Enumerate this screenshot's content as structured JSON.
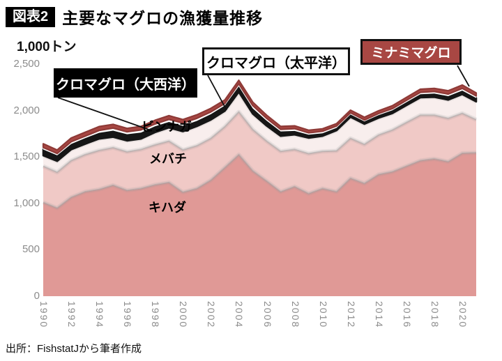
{
  "header": {
    "tag": "図表2",
    "title": "主要なマグロの漁獲量推移"
  },
  "axis_unit": "1,000トン",
  "source": "出所：FishstatJから筆者作成",
  "callouts": {
    "taiseiyo": "クロマグロ（大西洋）",
    "taiheiyo": "クロマグロ（太平洋）",
    "minami": "ミナミマグロ"
  },
  "area_labels": {
    "binnaga": "ビンナガ",
    "mebachi": "メバチ",
    "kihada": "キハダ"
  },
  "colors": {
    "kihada": "#e09996",
    "mebachi": "#f0c9c6",
    "binnaga": "#f8eeed",
    "taiseiyo": "#161616",
    "taiheiyo": "#ffffff",
    "minami": "#a84743",
    "minami_stroke": "#8e3a37",
    "axis_text": "#8c8c8c",
    "boundary_shadow": "#999999"
  },
  "chart_data": {
    "type": "area",
    "stacked": true,
    "title": "主要なマグロの漁獲量推移",
    "ylabel": "1,000トン",
    "ylim": [
      0,
      2500
    ],
    "grid": false,
    "legend_position": "callout-labels-on-chart",
    "y_ticks": [
      "0",
      "500",
      "1,000",
      "1,500",
      "2,000",
      "2,500"
    ],
    "y_tick_values": [
      0,
      500,
      1000,
      1500,
      2000,
      2500
    ],
    "x_ticks": [
      "1990",
      "1992",
      "1994",
      "1996",
      "1998",
      "2000",
      "2002",
      "2004",
      "2006",
      "2008",
      "2010",
      "2012",
      "2014",
      "2016",
      "2018",
      "2020"
    ],
    "x": [
      1990,
      1991,
      1992,
      1993,
      1994,
      1995,
      1996,
      1997,
      1998,
      1999,
      2000,
      2001,
      2002,
      2003,
      2004,
      2005,
      2006,
      2007,
      2008,
      2009,
      2010,
      2011,
      2012,
      2013,
      2014,
      2015,
      2016,
      2017,
      2018,
      2019,
      2020,
      2021
    ],
    "series": [
      {
        "name": "キハダ",
        "color": "#e09996",
        "values": [
          1010,
          950,
          1065,
          1125,
          1150,
          1195,
          1140,
          1160,
          1200,
          1225,
          1120,
          1160,
          1250,
          1385,
          1525,
          1350,
          1240,
          1125,
          1180,
          1105,
          1160,
          1125,
          1270,
          1215,
          1310,
          1340,
          1400,
          1460,
          1480,
          1450,
          1540,
          1545
        ]
      },
      {
        "name": "メバチ",
        "color": "#f0c9c6",
        "values": [
          390,
          385,
          395,
          400,
          420,
          405,
          415,
          420,
          430,
          445,
          455,
          460,
          450,
          440,
          460,
          445,
          430,
          435,
          400,
          430,
          400,
          440,
          430,
          420,
          425,
          450,
          470,
          490,
          470,
          465,
          430,
          355
        ]
      },
      {
        "name": "ビンナガ",
        "color": "#f8eeed",
        "values": [
          115,
          120,
          120,
          115,
          125,
          115,
          120,
          115,
          135,
          145,
          200,
          210,
          200,
          170,
          215,
          170,
          165,
          165,
          160,
          170,
          165,
          220,
          230,
          220,
          185,
          180,
          185,
          190,
          195,
          200,
          205,
          195
        ]
      },
      {
        "name": "クロマグロ（大西洋）",
        "color": "#161616",
        "values": [
          65,
          62,
          60,
          62,
          65,
          68,
          70,
          68,
          65,
          62,
          60,
          58,
          60,
          58,
          60,
          58,
          55,
          50,
          40,
          35,
          30,
          28,
          28,
          28,
          30,
          32,
          34,
          36,
          38,
          40,
          40,
          40
        ]
      },
      {
        "name": "クロマグロ（太平洋）",
        "color": "#ffffff",
        "values": [
          22,
          20,
          24,
          22,
          25,
          28,
          25,
          28,
          25,
          28,
          30,
          28,
          25,
          22,
          28,
          30,
          25,
          22,
          25,
          20,
          22,
          20,
          18,
          15,
          17,
          18,
          20,
          20,
          22,
          22,
          24,
          22
        ]
      },
      {
        "name": "ミナミマグロ",
        "color": "#a84743",
        "values": [
          40,
          38,
          40,
          42,
          42,
          40,
          38,
          38,
          40,
          40,
          38,
          38,
          38,
          38,
          38,
          38,
          35,
          32,
          30,
          28,
          26,
          26,
          28,
          30,
          30,
          32,
          32,
          34,
          34,
          36,
          36,
          33
        ]
      }
    ]
  }
}
